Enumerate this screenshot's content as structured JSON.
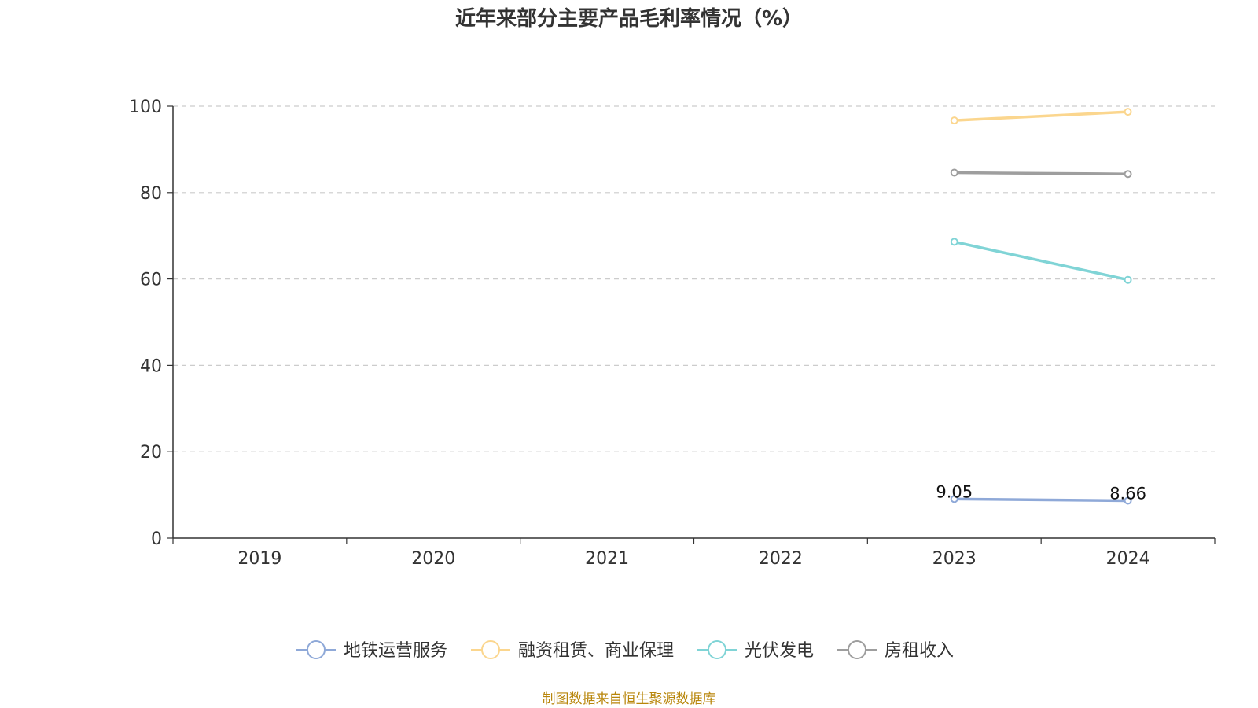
{
  "chart_data": {
    "type": "line",
    "title": "近年来部分主要产品毛利率情况（%）",
    "categories": [
      "2019",
      "2020",
      "2021",
      "2022",
      "2023",
      "2024"
    ],
    "ylim": [
      0,
      100
    ],
    "yticks": [
      0,
      20,
      40,
      60,
      80,
      100
    ],
    "grid": true,
    "legend_position": "bottom",
    "series": [
      {
        "name": "地铁运营服务",
        "color": "#8fa9d8",
        "values": [
          null,
          null,
          null,
          null,
          9.05,
          8.66
        ],
        "labels": [
          null,
          null,
          null,
          null,
          "9.05",
          "8.66"
        ]
      },
      {
        "name": "融资租赁、商业保理",
        "color": "#fbd68e",
        "values": [
          null,
          null,
          null,
          null,
          96.7,
          98.7
        ]
      },
      {
        "name": "光伏发电",
        "color": "#80d4d6",
        "values": [
          null,
          null,
          null,
          null,
          68.6,
          59.8
        ]
      },
      {
        "name": "房租收入",
        "color": "#9e9e9e",
        "values": [
          null,
          null,
          null,
          null,
          84.6,
          84.3
        ]
      }
    ]
  },
  "source": "制图数据来自恒生聚源数据库"
}
